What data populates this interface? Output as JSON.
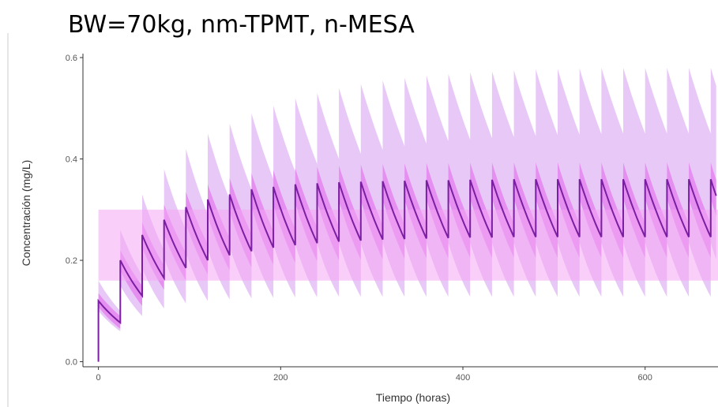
{
  "title": "BW=70kg, nm-TPMT, n-MESA",
  "chart_data": {
    "type": "line",
    "xlabel": "Tiempo (horas)",
    "ylabel": "Concentración (mg/L)",
    "xlim": [
      -17,
      680
    ],
    "ylim": [
      -0.01,
      0.6
    ],
    "x_ticks": [
      0,
      200,
      400,
      600
    ],
    "x_tick_labels": [
      "0",
      "200",
      "400",
      "600"
    ],
    "y_ticks": [
      0.0,
      0.2,
      0.4,
      0.6
    ],
    "y_tick_labels": [
      "0.0",
      "0.2",
      "0.4",
      "0.6"
    ],
    "grid": false,
    "target_range": {
      "from_x": 0,
      "to_x": 680,
      "lower": 0.16,
      "upper": 0.3
    },
    "dosing_interval": 24,
    "series": [
      {
        "role": "median",
        "peaks": [
          0.12,
          0.2,
          0.25,
          0.28,
          0.305,
          0.32,
          0.33,
          0.34,
          0.345,
          0.35,
          0.352,
          0.354,
          0.355,
          0.356,
          0.357,
          0.358,
          0.358,
          0.359,
          0.359,
          0.36,
          0.36,
          0.36,
          0.36,
          0.36,
          0.36,
          0.36,
          0.36,
          0.36,
          0.36
        ],
        "troughs": [
          0.077,
          0.13,
          0.165,
          0.185,
          0.2,
          0.21,
          0.218,
          0.225,
          0.23,
          0.234,
          0.237,
          0.239,
          0.241,
          0.242,
          0.243,
          0.244,
          0.245,
          0.245,
          0.246,
          0.246,
          0.246,
          0.246,
          0.246,
          0.246,
          0.246,
          0.246,
          0.246,
          0.246,
          0.246
        ]
      },
      {
        "role": "outer-band-upper",
        "peaks": [
          0.16,
          0.26,
          0.33,
          0.38,
          0.42,
          0.45,
          0.47,
          0.49,
          0.505,
          0.52,
          0.53,
          0.54,
          0.548,
          0.555,
          0.56,
          0.565,
          0.568,
          0.571,
          0.573,
          0.575,
          0.577,
          0.578,
          0.579,
          0.58,
          0.58,
          0.58,
          0.58,
          0.58,
          0.58
        ],
        "troughs": [
          0.1,
          0.17,
          0.22,
          0.26,
          0.29,
          0.32,
          0.34,
          0.36,
          0.375,
          0.39,
          0.4,
          0.41,
          0.418,
          0.425,
          0.43,
          0.435,
          0.438,
          0.441,
          0.443,
          0.445,
          0.447,
          0.448,
          0.449,
          0.45,
          0.45,
          0.45,
          0.45,
          0.45,
          0.45
        ]
      },
      {
        "role": "outer-band-lower",
        "peaks": [
          0.1,
          0.15,
          0.185,
          0.205,
          0.215,
          0.222,
          0.226,
          0.229,
          0.231,
          0.232,
          0.233,
          0.234,
          0.234,
          0.235,
          0.235,
          0.235,
          0.235,
          0.235,
          0.235,
          0.235,
          0.235,
          0.235,
          0.235,
          0.235,
          0.235,
          0.235,
          0.235,
          0.235,
          0.235
        ],
        "troughs": [
          0.06,
          0.09,
          0.105,
          0.115,
          0.12,
          0.123,
          0.125,
          0.126,
          0.127,
          0.127,
          0.128,
          0.128,
          0.128,
          0.128,
          0.128,
          0.128,
          0.128,
          0.128,
          0.128,
          0.128,
          0.128,
          0.128,
          0.128,
          0.128,
          0.128,
          0.128,
          0.128,
          0.128,
          0.128
        ]
      },
      {
        "role": "inner-band-upper",
        "peaks": [
          0.135,
          0.22,
          0.275,
          0.31,
          0.335,
          0.35,
          0.362,
          0.372,
          0.378,
          0.382,
          0.385,
          0.387,
          0.389,
          0.39,
          0.391,
          0.392,
          0.392,
          0.393,
          0.393,
          0.393,
          0.393,
          0.393,
          0.393,
          0.393,
          0.393,
          0.393,
          0.393,
          0.393,
          0.393
        ],
        "troughs": [
          0.09,
          0.15,
          0.19,
          0.215,
          0.232,
          0.244,
          0.252,
          0.258,
          0.262,
          0.265,
          0.267,
          0.269,
          0.27,
          0.271,
          0.272,
          0.272,
          0.273,
          0.273,
          0.273,
          0.273,
          0.273,
          0.273,
          0.273,
          0.273,
          0.273,
          0.273,
          0.273,
          0.273,
          0.273
        ]
      },
      {
        "role": "inner-band-lower",
        "peaks": [
          0.108,
          0.18,
          0.225,
          0.252,
          0.272,
          0.287,
          0.296,
          0.304,
          0.309,
          0.313,
          0.315,
          0.317,
          0.318,
          0.319,
          0.32,
          0.321,
          0.321,
          0.322,
          0.322,
          0.322,
          0.322,
          0.322,
          0.322,
          0.322,
          0.322,
          0.322,
          0.322,
          0.322,
          0.322
        ],
        "troughs": [
          0.065,
          0.11,
          0.142,
          0.16,
          0.172,
          0.18,
          0.186,
          0.191,
          0.195,
          0.198,
          0.2,
          0.201,
          0.202,
          0.203,
          0.204,
          0.204,
          0.205,
          0.205,
          0.205,
          0.205,
          0.205,
          0.205,
          0.205,
          0.205,
          0.205,
          0.205,
          0.205,
          0.205,
          0.205
        ]
      }
    ],
    "colors": {
      "median_line": "#7b1fa2",
      "inner_band": "#e58ff0",
      "outer_band": "#e8c8f7",
      "target_range": "#f4a6f4",
      "axis": "#333333",
      "tick_text": "#555555"
    }
  }
}
